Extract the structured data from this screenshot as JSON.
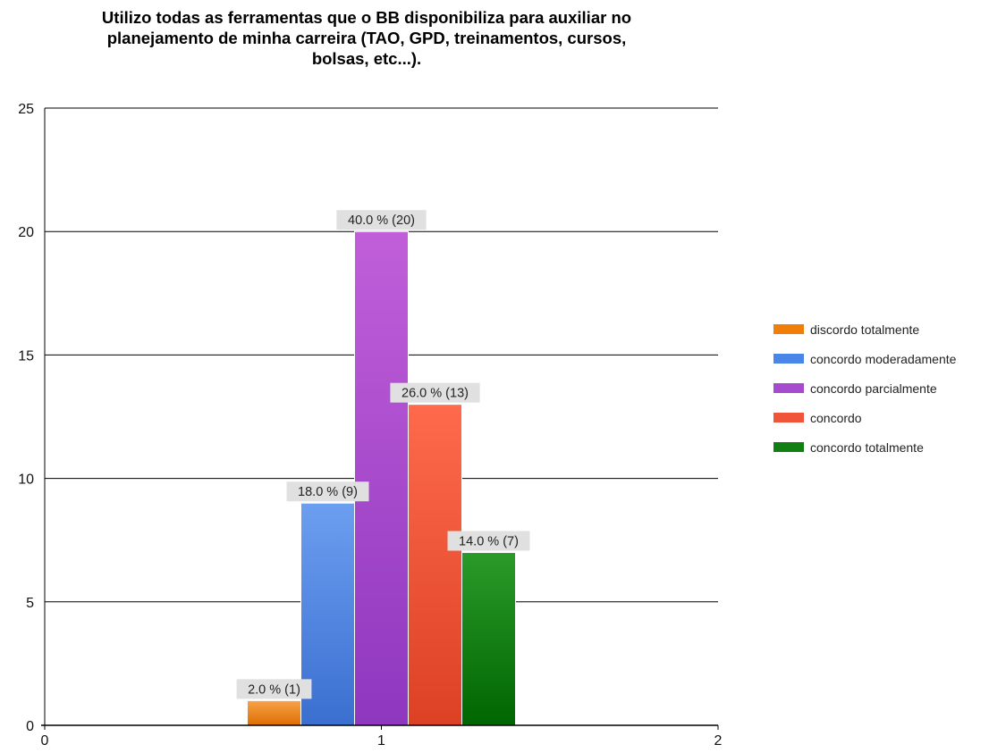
{
  "chart_data": {
    "type": "bar",
    "title": [
      "Utilizo todas as ferramentas que o BB disponibiliza para auxiliar no",
      "planejamento de minha carreira (TAO, GPD, treinamentos, cursos,",
      "bolsas, etc...)."
    ],
    "x": 1,
    "xlim": [
      0,
      2
    ],
    "xticks": [
      "0",
      "1",
      "2"
    ],
    "ylim": [
      0,
      25
    ],
    "yticks": [
      "0",
      "5",
      "10",
      "15",
      "20",
      "25"
    ],
    "grid": true,
    "legend_position": "right",
    "series": [
      {
        "name": "discordo totalmente",
        "value": 1,
        "label": "2.0 % (1)",
        "color": "#f07f0a",
        "color_light": "#f8a24a",
        "color_dark": "#dd6e00"
      },
      {
        "name": "concordo moderadamente",
        "value": 9,
        "label": "18.0 % (9)",
        "color": "#4a86e8",
        "color_light": "#6c9ef0",
        "color_dark": "#3b6fd0"
      },
      {
        "name": "concordo parcialmente",
        "value": 20,
        "label": "40.0 % (20)",
        "color": "#a64bcf",
        "color_light": "#c15fd9",
        "color_dark": "#8e37bf"
      },
      {
        "name": "concordo",
        "value": 13,
        "label": "26.0 % (13)",
        "color": "#f0553a",
        "color_light": "#ff6a4c",
        "color_dark": "#dc4124"
      },
      {
        "name": "concordo totalmente",
        "value": 7,
        "label": "14.0 % (7)",
        "color": "#127f12",
        "color_light": "#2a9a2a",
        "color_dark": "#006600"
      }
    ]
  }
}
